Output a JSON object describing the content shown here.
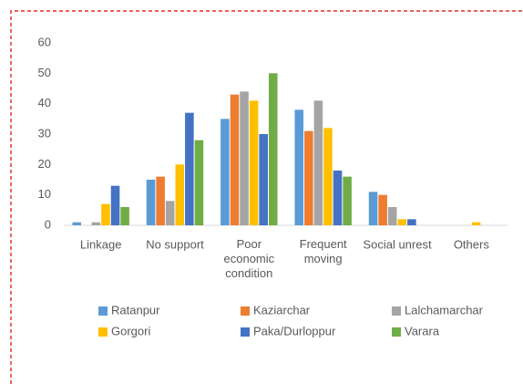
{
  "chart_data": {
    "type": "bar",
    "categories": [
      "Linkage",
      "No support",
      "Poor economic condition",
      "Frequent moving",
      "Social unrest",
      "Others"
    ],
    "series": [
      {
        "name": "Ratanpur",
        "color": "#5b9bd5",
        "values": [
          1,
          15,
          35,
          38,
          11,
          0
        ]
      },
      {
        "name": "Kaziarchar",
        "color": "#ed7d31",
        "values": [
          0,
          16,
          43,
          31,
          10,
          0
        ]
      },
      {
        "name": "Lalchamarchar",
        "color": "#a5a5a5",
        "values": [
          1,
          8,
          44,
          41,
          6,
          0
        ]
      },
      {
        "name": "Gorgori",
        "color": "#ffc000",
        "values": [
          7,
          20,
          41,
          32,
          2,
          1
        ]
      },
      {
        "name": "Paka/Durloppur",
        "color": "#4472c4",
        "values": [
          13,
          37,
          30,
          18,
          2,
          0
        ]
      },
      {
        "name": "Varara",
        "color": "#70ad47",
        "values": [
          6,
          28,
          50,
          16,
          0,
          0
        ]
      }
    ],
    "ylim": [
      0,
      60
    ],
    "yticks": [
      0,
      10,
      20,
      30,
      40,
      50,
      60
    ],
    "grid": false,
    "legend": "bottom"
  }
}
